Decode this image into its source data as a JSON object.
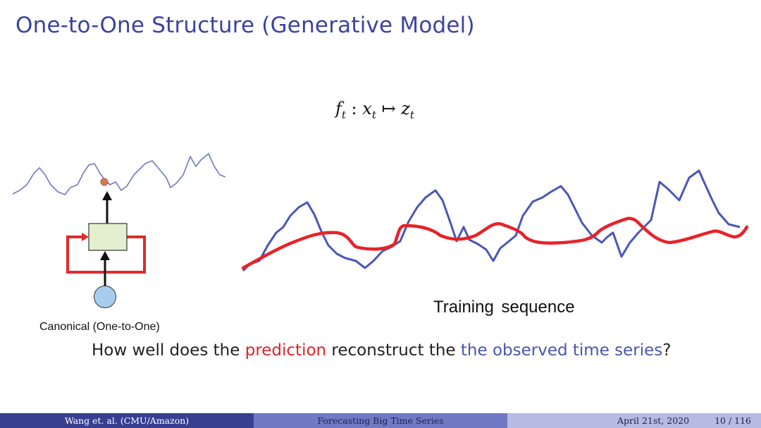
{
  "slide": {
    "title": "One-to-One Structure (Generative Model)"
  },
  "formula": {
    "f": "f",
    "f_sub": "t",
    "colon": " : ",
    "x": "x",
    "x_sub": "t",
    "maps": " ↦ ",
    "z": "z",
    "z_sub": "t"
  },
  "rnn_diagram": {
    "caption": "Canonical (One-to-One)",
    "colors": {
      "box": "#e3f0cf",
      "loop": "#e02a2a",
      "input": "#a6cdef",
      "output_dot": "#d97a55",
      "wave": "#6e79c0"
    }
  },
  "training_plot": {
    "caption": "Training  sequence",
    "colors": {
      "observed": "#4a56b5",
      "prediction": "#e8222a"
    }
  },
  "question": {
    "part1": "How well does the ",
    "prediction": "prediction",
    "part2": " reconstruct the ",
    "observed": "the observed time series",
    "part3": "?"
  },
  "footer": {
    "author": "Wang et. al.  (CMU/Amazon)",
    "talk_title": "Forecasting Big Time Series",
    "date": "April 21st, 2020",
    "page": "10 / 116"
  }
}
